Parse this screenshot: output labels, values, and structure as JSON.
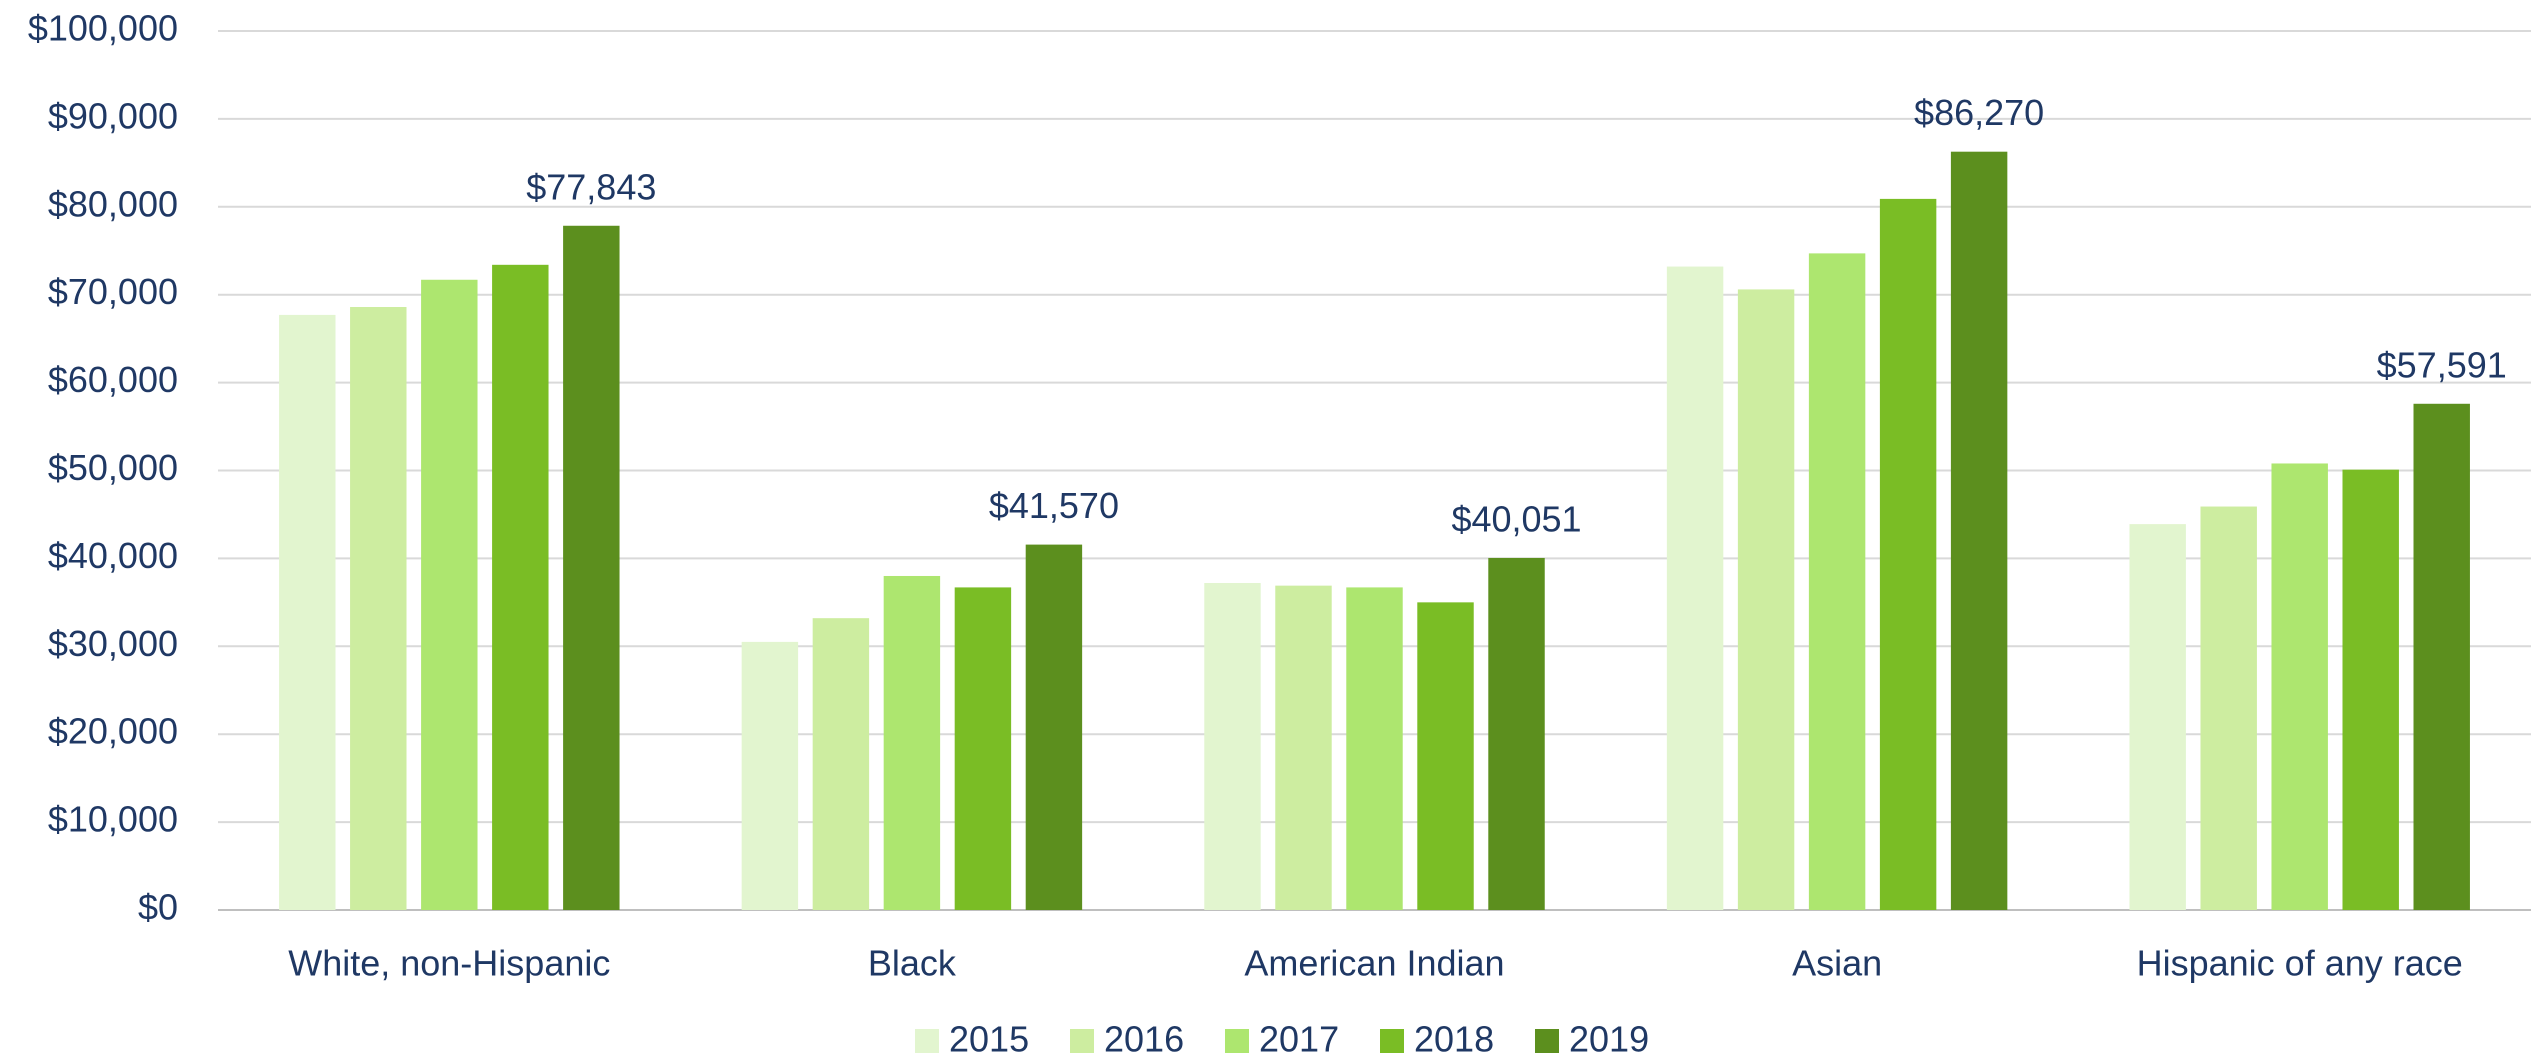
{
  "chart_data": {
    "type": "bar",
    "categories": [
      "White, non-Hispanic",
      "Black",
      "American Indian",
      "Asian",
      "Hispanic of any race"
    ],
    "series": [
      {
        "name": "2015",
        "color": "#e2f5cf",
        "values": [
          67700,
          30500,
          37200,
          73200,
          43900
        ]
      },
      {
        "name": "2016",
        "color": "#cdeda0",
        "values": [
          68600,
          33200,
          36900,
          70600,
          45900
        ]
      },
      {
        "name": "2017",
        "color": "#ade66f",
        "values": [
          71700,
          38000,
          36700,
          74700,
          50800
        ]
      },
      {
        "name": "2018",
        "color": "#7abd25",
        "values": [
          73400,
          36700,
          35000,
          80900,
          50100
        ]
      },
      {
        "name": "2019",
        "color": "#5c8f1e",
        "values": [
          77843,
          41570,
          40051,
          86270,
          57591
        ],
        "value_labels": [
          "$77,843",
          "$41,570",
          "$40,051",
          "$86,270",
          "$57,591"
        ]
      }
    ],
    "ylim": [
      0,
      100000
    ],
    "yticks": [
      {
        "value": 0,
        "label": "$0"
      },
      {
        "value": 10000,
        "label": "$10,000"
      },
      {
        "value": 20000,
        "label": "$20,000"
      },
      {
        "value": 30000,
        "label": "$30,000"
      },
      {
        "value": 40000,
        "label": "$40,000"
      },
      {
        "value": 50000,
        "label": "$50,000"
      },
      {
        "value": 60000,
        "label": "$60,000"
      },
      {
        "value": 70000,
        "label": "$70,000"
      },
      {
        "value": 80000,
        "label": "$80,000"
      },
      {
        "value": 90000,
        "label": "$90,000"
      },
      {
        "value": 100000,
        "label": "$100,000"
      }
    ],
    "grid": true,
    "legend": "bottom"
  }
}
